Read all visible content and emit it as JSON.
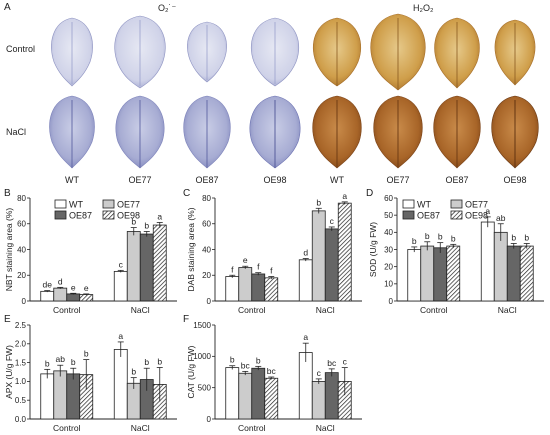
{
  "figure": {
    "panel_letters": [
      "A",
      "B",
      "C",
      "D",
      "E",
      "F"
    ],
    "panel_a": {
      "stain_titles": [
        "O₂˙⁻",
        "H₂O₂"
      ],
      "row_labels": [
        "Control",
        "NaCl"
      ],
      "column_labels": [
        "WT",
        "OE77",
        "OE87",
        "OE98",
        "WT",
        "OE77",
        "OE87",
        "OE98"
      ]
    },
    "colors": {
      "WT": "#ffffff",
      "OE77": "#cccccc",
      "OE87": "#666666",
      "OE98": "hatch",
      "nbt_leaf": "#8a90c0",
      "dab_leaf": "#c9962f"
    }
  },
  "chart_data": [
    {
      "panel": "B",
      "type": "bar",
      "categories": [
        "Control",
        "NaCl"
      ],
      "ylabel": "NBT staining area (%)",
      "ylim": [
        0,
        80
      ],
      "yticks": [
        0,
        20,
        40,
        60,
        80
      ],
      "legend": [
        "WT",
        "OE77",
        "OE87",
        "OE98"
      ],
      "series": [
        {
          "name": "WT",
          "values": [
            7.5,
            23
          ],
          "err": [
            0.6,
            0.8
          ],
          "letters": [
            "de",
            "c"
          ]
        },
        {
          "name": "OE77",
          "values": [
            10,
            54
          ],
          "err": [
            0.6,
            3
          ],
          "letters": [
            "d",
            "b"
          ]
        },
        {
          "name": "OE87",
          "values": [
            5.5,
            52
          ],
          "err": [
            0.5,
            2
          ],
          "letters": [
            "e",
            "b"
          ]
        },
        {
          "name": "OE98",
          "values": [
            5,
            59
          ],
          "err": [
            0.5,
            2
          ],
          "letters": [
            "e",
            "a"
          ]
        }
      ]
    },
    {
      "panel": "C",
      "type": "bar",
      "categories": [
        "Control",
        "NaCl"
      ],
      "ylabel": "DAB staining area (%)",
      "ylim": [
        0,
        80
      ],
      "yticks": [
        0,
        20,
        40,
        60,
        80
      ],
      "legend": [],
      "series": [
        {
          "name": "WT",
          "values": [
            19,
            32
          ],
          "err": [
            1,
            1
          ],
          "letters": [
            "f",
            "d"
          ]
        },
        {
          "name": "OE77",
          "values": [
            26,
            70
          ],
          "err": [
            1,
            2
          ],
          "letters": [
            "e",
            "b"
          ]
        },
        {
          "name": "OE87",
          "values": [
            21,
            56
          ],
          "err": [
            1,
            1.5
          ],
          "letters": [
            "f",
            "c"
          ]
        },
        {
          "name": "OE98",
          "values": [
            18,
            76
          ],
          "err": [
            1,
            1
          ],
          "letters": [
            "f",
            "a"
          ]
        }
      ]
    },
    {
      "panel": "D",
      "type": "bar",
      "categories": [
        "Control",
        "NaCl"
      ],
      "ylabel": "SOD (U/g FW)",
      "ylim": [
        0,
        60
      ],
      "yticks": [
        0,
        10,
        20,
        30,
        40,
        50,
        60
      ],
      "legend": [
        "WT",
        "OE77",
        "OE87",
        "OE98"
      ],
      "series": [
        {
          "name": "WT",
          "values": [
            30,
            46
          ],
          "err": [
            1.5,
            3
          ],
          "letters": [
            "b",
            "a"
          ]
        },
        {
          "name": "OE77",
          "values": [
            32,
            40
          ],
          "err": [
            2.5,
            5
          ],
          "letters": [
            "b",
            "ab"
          ]
        },
        {
          "name": "OE87",
          "values": [
            31,
            32
          ],
          "err": [
            3,
            1.5
          ],
          "letters": [
            "b",
            "b"
          ]
        },
        {
          "name": "OE98",
          "values": [
            32,
            32
          ],
          "err": [
            1,
            1.5
          ],
          "letters": [
            "b",
            "b"
          ]
        }
      ]
    },
    {
      "panel": "E",
      "type": "bar",
      "categories": [
        "Control",
        "NaCl"
      ],
      "ylabel": "APX (U/g FW)",
      "ylim": [
        0,
        2.5
      ],
      "yticks": [
        0,
        0.5,
        1.0,
        1.5,
        2.0,
        2.5
      ],
      "legend": [],
      "series": [
        {
          "name": "WT",
          "values": [
            1.2,
            1.85
          ],
          "err": [
            0.12,
            0.2
          ],
          "letters": [
            "b",
            "a"
          ]
        },
        {
          "name": "OE77",
          "values": [
            1.28,
            0.95
          ],
          "err": [
            0.15,
            0.15
          ],
          "letters": [
            "ab",
            "b"
          ]
        },
        {
          "name": "OE87",
          "values": [
            1.2,
            1.05
          ],
          "err": [
            0.15,
            0.3
          ],
          "letters": [
            "b",
            "b"
          ]
        },
        {
          "name": "OE98",
          "values": [
            1.18,
            0.92
          ],
          "err": [
            0.4,
            0.45
          ],
          "letters": [
            "b",
            "b"
          ]
        }
      ]
    },
    {
      "panel": "F",
      "type": "bar",
      "categories": [
        "Control",
        "NaCl"
      ],
      "ylabel": "CAT (U/g FW)",
      "ylim": [
        0,
        1500
      ],
      "yticks": [
        0,
        500,
        1000,
        1500
      ],
      "legend": [],
      "series": [
        {
          "name": "WT",
          "values": [
            820,
            1060
          ],
          "err": [
            30,
            150
          ],
          "letters": [
            "b",
            "a"
          ]
        },
        {
          "name": "OE77",
          "values": [
            730,
            600
          ],
          "err": [
            30,
            40
          ],
          "letters": [
            "bc",
            "c"
          ]
        },
        {
          "name": "OE87",
          "values": [
            810,
            740
          ],
          "err": [
            30,
            60
          ],
          "letters": [
            "b",
            "bc"
          ]
        },
        {
          "name": "OE98",
          "values": [
            650,
            600
          ],
          "err": [
            20,
            220
          ],
          "letters": [
            "bc",
            "c"
          ]
        }
      ]
    }
  ]
}
